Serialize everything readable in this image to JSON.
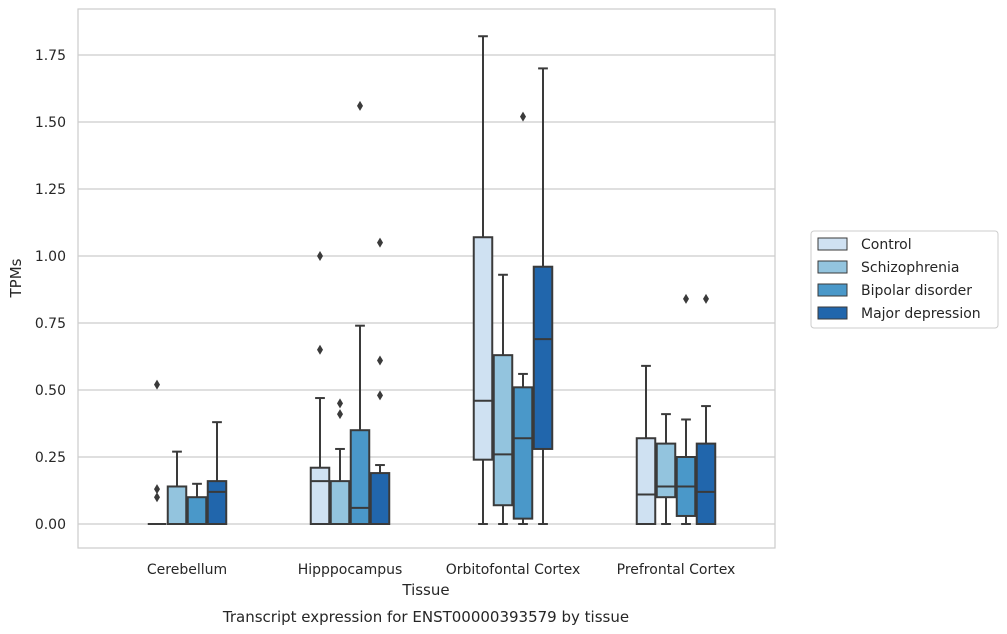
{
  "caption": "Transcript expression for ENST00000393579 by tissue",
  "chart_data": {
    "type": "box",
    "xlabel": "Tissue",
    "ylabel": "TPMs",
    "ylim": [
      -0.09,
      1.91
    ],
    "yticks": [
      0.0,
      0.25,
      0.5,
      0.75,
      1.0,
      1.25,
      1.5,
      1.75
    ],
    "ytick_labels": [
      "0.00",
      "0.25",
      "0.50",
      "0.75",
      "1.00",
      "1.25",
      "1.50",
      "1.75"
    ],
    "grid": "horizontal",
    "legend_position": "right",
    "categories": [
      "Cerebellum",
      "Hipppocampus",
      "Orbitofontal Cortex",
      "Prefrontal Cortex"
    ],
    "series": [
      {
        "name": "Control",
        "color": "#cfe1f2",
        "boxes": [
          {
            "q1": 0.0,
            "median": 0.0,
            "q3": 0.0,
            "whislo": 0.0,
            "whishi": 0.0,
            "fliers": [
              0.52,
              0.13,
              0.1
            ]
          },
          {
            "q1": 0.0,
            "median": 0.16,
            "q3": 0.21,
            "whislo": 0.0,
            "whishi": 0.47,
            "fliers": [
              1.0,
              0.65
            ]
          },
          {
            "q1": 0.24,
            "median": 0.46,
            "q3": 1.07,
            "whislo": 0.0,
            "whishi": 1.82,
            "fliers": []
          },
          {
            "q1": 0.0,
            "median": 0.11,
            "q3": 0.32,
            "whislo": 0.0,
            "whishi": 0.59,
            "fliers": []
          }
        ]
      },
      {
        "name": "Schizophrenia",
        "color": "#93c4de",
        "boxes": [
          {
            "q1": 0.0,
            "median": 0.0,
            "q3": 0.14,
            "whislo": 0.0,
            "whishi": 0.27,
            "fliers": []
          },
          {
            "q1": 0.0,
            "median": 0.0,
            "q3": 0.16,
            "whislo": 0.0,
            "whishi": 0.28,
            "fliers": [
              0.45,
              0.41
            ]
          },
          {
            "q1": 0.07,
            "median": 0.26,
            "q3": 0.63,
            "whislo": 0.0,
            "whishi": 0.93,
            "fliers": []
          },
          {
            "q1": 0.1,
            "median": 0.14,
            "q3": 0.3,
            "whislo": 0.0,
            "whishi": 0.41,
            "fliers": []
          }
        ]
      },
      {
        "name": "Bipolar disorder",
        "color": "#4a98c9",
        "boxes": [
          {
            "q1": 0.0,
            "median": 0.0,
            "q3": 0.1,
            "whislo": 0.0,
            "whishi": 0.15,
            "fliers": []
          },
          {
            "q1": 0.0,
            "median": 0.06,
            "q3": 0.35,
            "whislo": 0.0,
            "whishi": 0.74,
            "fliers": [
              1.56
            ]
          },
          {
            "q1": 0.02,
            "median": 0.32,
            "q3": 0.51,
            "whislo": 0.0,
            "whishi": 0.56,
            "fliers": [
              1.52
            ]
          },
          {
            "q1": 0.03,
            "median": 0.14,
            "q3": 0.25,
            "whislo": 0.0,
            "whishi": 0.39,
            "fliers": [
              0.84
            ]
          }
        ]
      },
      {
        "name": "Major depression",
        "color": "#2166ac",
        "boxes": [
          {
            "q1": 0.0,
            "median": 0.12,
            "q3": 0.16,
            "whislo": 0.0,
            "whishi": 0.38,
            "fliers": []
          },
          {
            "q1": 0.0,
            "median": 0.0,
            "q3": 0.19,
            "whislo": 0.0,
            "whishi": 0.22,
            "fliers": [
              1.05,
              0.61,
              0.48
            ]
          },
          {
            "q1": 0.28,
            "median": 0.69,
            "q3": 0.96,
            "whislo": 0.0,
            "whishi": 1.7,
            "fliers": []
          },
          {
            "q1": 0.0,
            "median": 0.12,
            "q3": 0.3,
            "whislo": 0.0,
            "whishi": 0.44,
            "fliers": [
              0.84
            ]
          }
        ]
      }
    ]
  }
}
